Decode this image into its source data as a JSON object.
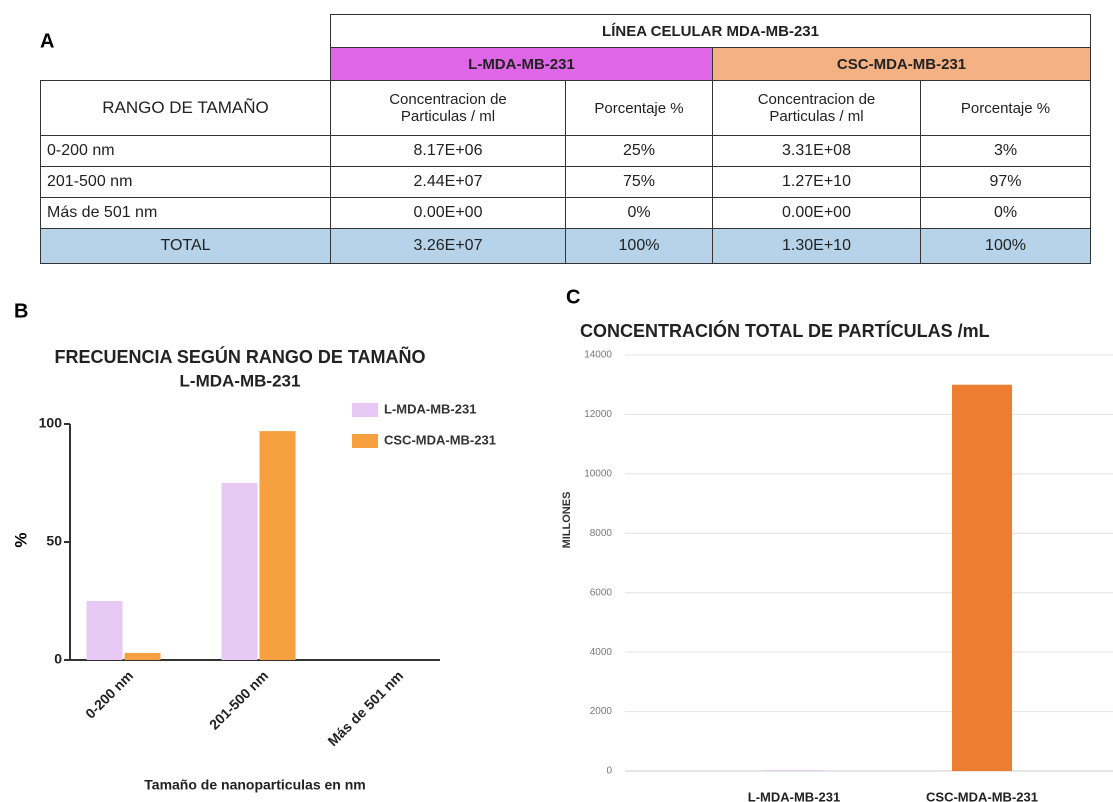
{
  "panels": [
    "A",
    "B",
    "C"
  ],
  "table": {
    "title": "LÍNEA  CELULAR MDA-MB-231",
    "groups": [
      "L-MDA-MB-231",
      "CSC-MDA-MB-231"
    ],
    "header": [
      "RANGO DE TAMAÑO",
      "Concentracion de Particulas / ml",
      "Porcentaje %",
      "Concentracion de Particulas / ml",
      "Porcentaje %"
    ],
    "rows": [
      [
        "0-200   nm",
        "8.17E+06",
        "25%",
        "3.31E+08",
        "3%"
      ],
      [
        "201-500  nm",
        "2.44E+07",
        "75%",
        "1.27E+10",
        "97%"
      ],
      [
        "Más de 501 nm",
        "0.00E+00",
        "0%",
        "0.00E+00",
        "0%"
      ]
    ],
    "total": [
      "TOTAL",
      "3.26E+07",
      "100%",
      "1.30E+10",
      "100%"
    ]
  },
  "chart_data": [
    {
      "type": "bar",
      "title": "FRECUENCIA SEGÚN RANGO DE TAMAÑO",
      "subtitle": "L-MDA-MB-231",
      "y_label": "%",
      "x_label": "Tamaño de nanoparticulas en nm",
      "categories": [
        "0-200 nm",
        "201-500 nm",
        "Más de 501 nm"
      ],
      "series": [
        {
          "name": "L-MDA-MB-231",
          "color": "#e8c8f4",
          "values": [
            25,
            75,
            0
          ]
        },
        {
          "name": "CSC-MDA-MB-231",
          "color": "#f7a040",
          "values": [
            3,
            97,
            0
          ]
        }
      ],
      "ylim": [
        0,
        100
      ],
      "yticks": [
        0,
        50,
        100
      ],
      "grid": false,
      "legend": "upper right"
    },
    {
      "type": "bar",
      "title": "CONCENTRACIÓN TOTAL DE PARTÍCULAS  /mL",
      "y_label": "MILLONES",
      "categories": [
        "L-MDA-MB-231",
        "CSC-MDA-MB-231"
      ],
      "values": [
        32.6,
        13000
      ],
      "colors": [
        "#e8c8f4",
        "#ed7d31"
      ],
      "ylim": [
        0,
        14000
      ],
      "yticks": [
        0,
        2000,
        4000,
        6000,
        8000,
        10000,
        12000,
        14000
      ],
      "grid": true
    }
  ]
}
